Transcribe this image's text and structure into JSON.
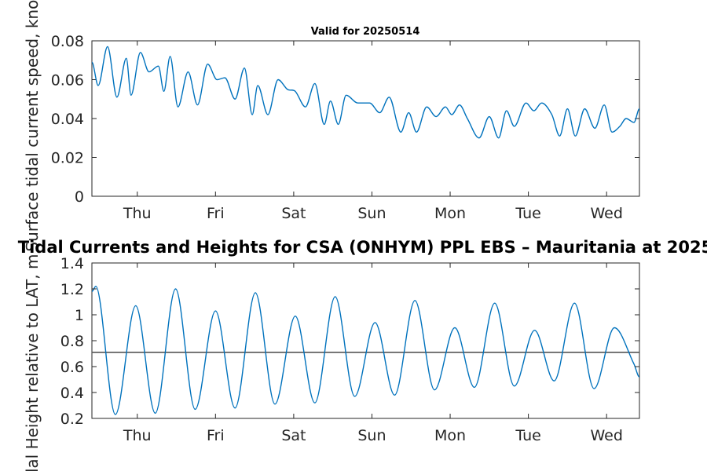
{
  "chart_data": [
    {
      "type": "line",
      "title": "Valid for 20250514",
      "xlabel": "",
      "ylabel": "Surface tidal current speed, knots",
      "ylim": [
        0,
        0.08
      ],
      "yticks": [
        "0",
        "0.02",
        "0.04",
        "0.06",
        "0.08"
      ],
      "xlim": [
        0,
        7
      ],
      "xticks": [
        "Thu",
        "Fri",
        "Sat",
        "Sun",
        "Mon",
        "Tue",
        "Wed"
      ],
      "xtick_positions": [
        0.58,
        1.58,
        2.58,
        3.58,
        4.58,
        5.58,
        6.58
      ],
      "grid": false,
      "series": [
        {
          "color": "#0072BD",
          "x": [
            0,
            0.08,
            0.2,
            0.32,
            0.44,
            0.5,
            0.62,
            0.73,
            0.85,
            0.92,
            1.0,
            1.1,
            1.23,
            1.35,
            1.48,
            1.6,
            1.7,
            1.83,
            1.95,
            2.05,
            2.12,
            2.25,
            2.38,
            2.5,
            2.6,
            2.73,
            2.85,
            2.97,
            3.05,
            3.15,
            3.25,
            3.4,
            3.55,
            3.68,
            3.8,
            3.95,
            4.05,
            4.15,
            4.28,
            4.4,
            4.52,
            4.6,
            4.7,
            4.8,
            4.95,
            5.08,
            5.2,
            5.3,
            5.4,
            5.55,
            5.65,
            5.75,
            5.88,
            5.98,
            6.08,
            6.18,
            6.3,
            6.43,
            6.55,
            6.65,
            6.75,
            6.83,
            6.93,
            7.0
          ],
          "y": [
            0.069,
            0.057,
            0.077,
            0.051,
            0.071,
            0.052,
            0.074,
            0.064,
            0.067,
            0.054,
            0.072,
            0.046,
            0.064,
            0.047,
            0.068,
            0.06,
            0.061,
            0.05,
            0.066,
            0.042,
            0.057,
            0.042,
            0.06,
            0.055,
            0.054,
            0.046,
            0.058,
            0.037,
            0.049,
            0.037,
            0.052,
            0.048,
            0.048,
            0.043,
            0.051,
            0.033,
            0.043,
            0.033,
            0.046,
            0.041,
            0.046,
            0.042,
            0.047,
            0.04,
            0.03,
            0.041,
            0.03,
            0.044,
            0.036,
            0.048,
            0.044,
            0.048,
            0.042,
            0.031,
            0.045,
            0.031,
            0.045,
            0.035,
            0.047,
            0.033,
            0.036,
            0.04,
            0.038,
            0.045
          ]
        }
      ]
    },
    {
      "type": "line",
      "title": "Tidal Currents and Heights for CSA (ONHYM) PPL EBS  – Mauritania at 2025",
      "xlabel": "",
      "ylabel": "Tidal Height relative to LAT, m",
      "ylim": [
        0.2,
        1.4
      ],
      "yticks": [
        "0.2",
        "0.4",
        "0.6",
        "0.8",
        "1",
        "1.2",
        "1.4"
      ],
      "xlim": [
        0,
        7
      ],
      "xticks": [
        "Thu",
        "Fri",
        "Sat",
        "Sun",
        "Mon",
        "Tue",
        "Wed"
      ],
      "xtick_positions": [
        0.58,
        1.58,
        2.58,
        3.58,
        4.58,
        5.58,
        6.58
      ],
      "reference_line": 0.71,
      "grid": false,
      "series": [
        {
          "color": "#0072BD",
          "x": [
            0,
            0.05,
            0.3,
            0.56,
            0.81,
            1.07,
            1.32,
            1.58,
            1.83,
            2.09,
            2.34,
            2.6,
            2.85,
            3.11,
            3.36,
            3.62,
            3.87,
            4.13,
            4.38,
            4.64,
            4.89,
            5.15,
            5.4,
            5.66,
            5.91,
            6.17,
            6.42,
            6.68,
            6.93,
            7.0
          ],
          "y": [
            1.18,
            1.22,
            0.23,
            1.07,
            0.24,
            1.2,
            0.27,
            1.03,
            0.28,
            1.17,
            0.31,
            0.99,
            0.32,
            1.14,
            0.37,
            0.94,
            0.38,
            1.11,
            0.42,
            0.9,
            0.44,
            1.09,
            0.45,
            0.88,
            0.49,
            1.09,
            0.43,
            0.9,
            0.62,
            0.52
          ]
        }
      ]
    }
  ]
}
